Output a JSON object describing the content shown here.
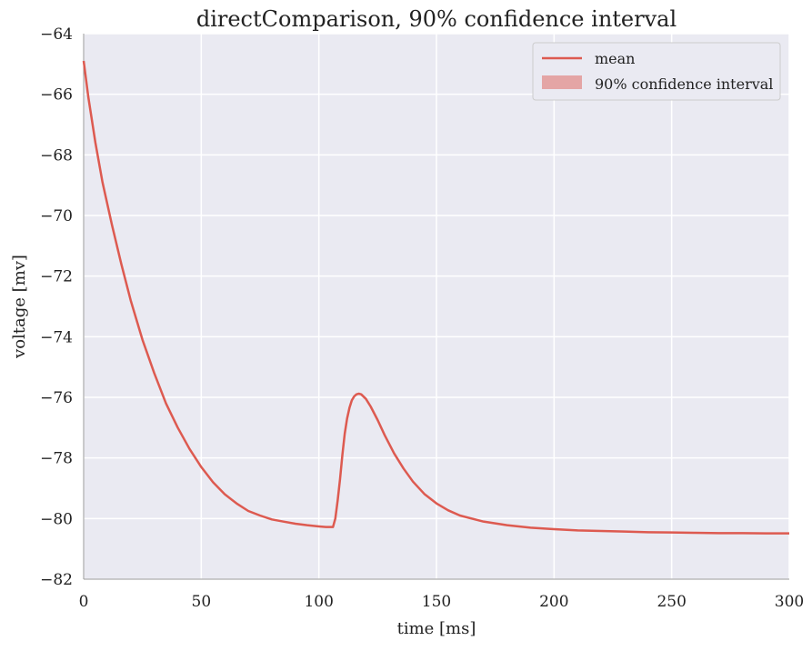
{
  "chart_data": {
    "type": "line",
    "title": "directComparison, 90% confidence interval",
    "xlabel": "time [ms]",
    "ylabel": "voltage [mv]",
    "xlim": [
      0,
      300
    ],
    "ylim": [
      -82,
      -64
    ],
    "xticks": [
      0,
      50,
      100,
      150,
      200,
      250,
      300
    ],
    "yticks": [
      -64,
      -66,
      -68,
      -70,
      -72,
      -74,
      -76,
      -78,
      -80,
      -82
    ],
    "grid": true,
    "legend_position": "top-right",
    "series": [
      {
        "name": "mean",
        "color": "#dd5a50",
        "x": [
          0,
          2,
          5,
          8,
          12,
          16,
          20,
          25,
          30,
          35,
          40,
          45,
          50,
          55,
          60,
          65,
          70,
          75,
          80,
          85,
          90,
          95,
          100,
          103,
          106,
          107,
          108,
          109,
          110,
          111,
          112,
          113,
          114,
          115,
          116,
          117,
          118,
          120,
          122,
          125,
          128,
          132,
          136,
          140,
          145,
          150,
          155,
          160,
          170,
          180,
          190,
          200,
          210,
          220,
          230,
          240,
          250,
          260,
          270,
          280,
          290,
          300
        ],
        "values": [
          -64.9,
          -66.1,
          -67.6,
          -68.9,
          -70.3,
          -71.6,
          -72.8,
          -74.1,
          -75.2,
          -76.2,
          -77.0,
          -77.7,
          -78.3,
          -78.8,
          -79.2,
          -79.5,
          -79.75,
          -79.9,
          -80.03,
          -80.1,
          -80.17,
          -80.22,
          -80.26,
          -80.28,
          -80.28,
          -80.0,
          -79.4,
          -78.7,
          -77.9,
          -77.2,
          -76.7,
          -76.35,
          -76.1,
          -75.97,
          -75.9,
          -75.88,
          -75.9,
          -76.05,
          -76.3,
          -76.75,
          -77.25,
          -77.85,
          -78.35,
          -78.78,
          -79.2,
          -79.5,
          -79.73,
          -79.9,
          -80.1,
          -80.22,
          -80.3,
          -80.35,
          -80.39,
          -80.41,
          -80.43,
          -80.45,
          -80.46,
          -80.47,
          -80.48,
          -80.48,
          -80.49,
          -80.49
        ]
      }
    ],
    "legend": {
      "entries": [
        {
          "label": "mean",
          "kind": "line",
          "color": "#dd5a50"
        },
        {
          "label": "90% confidence interval",
          "kind": "patch",
          "color": "#e4a5a5"
        }
      ]
    }
  }
}
